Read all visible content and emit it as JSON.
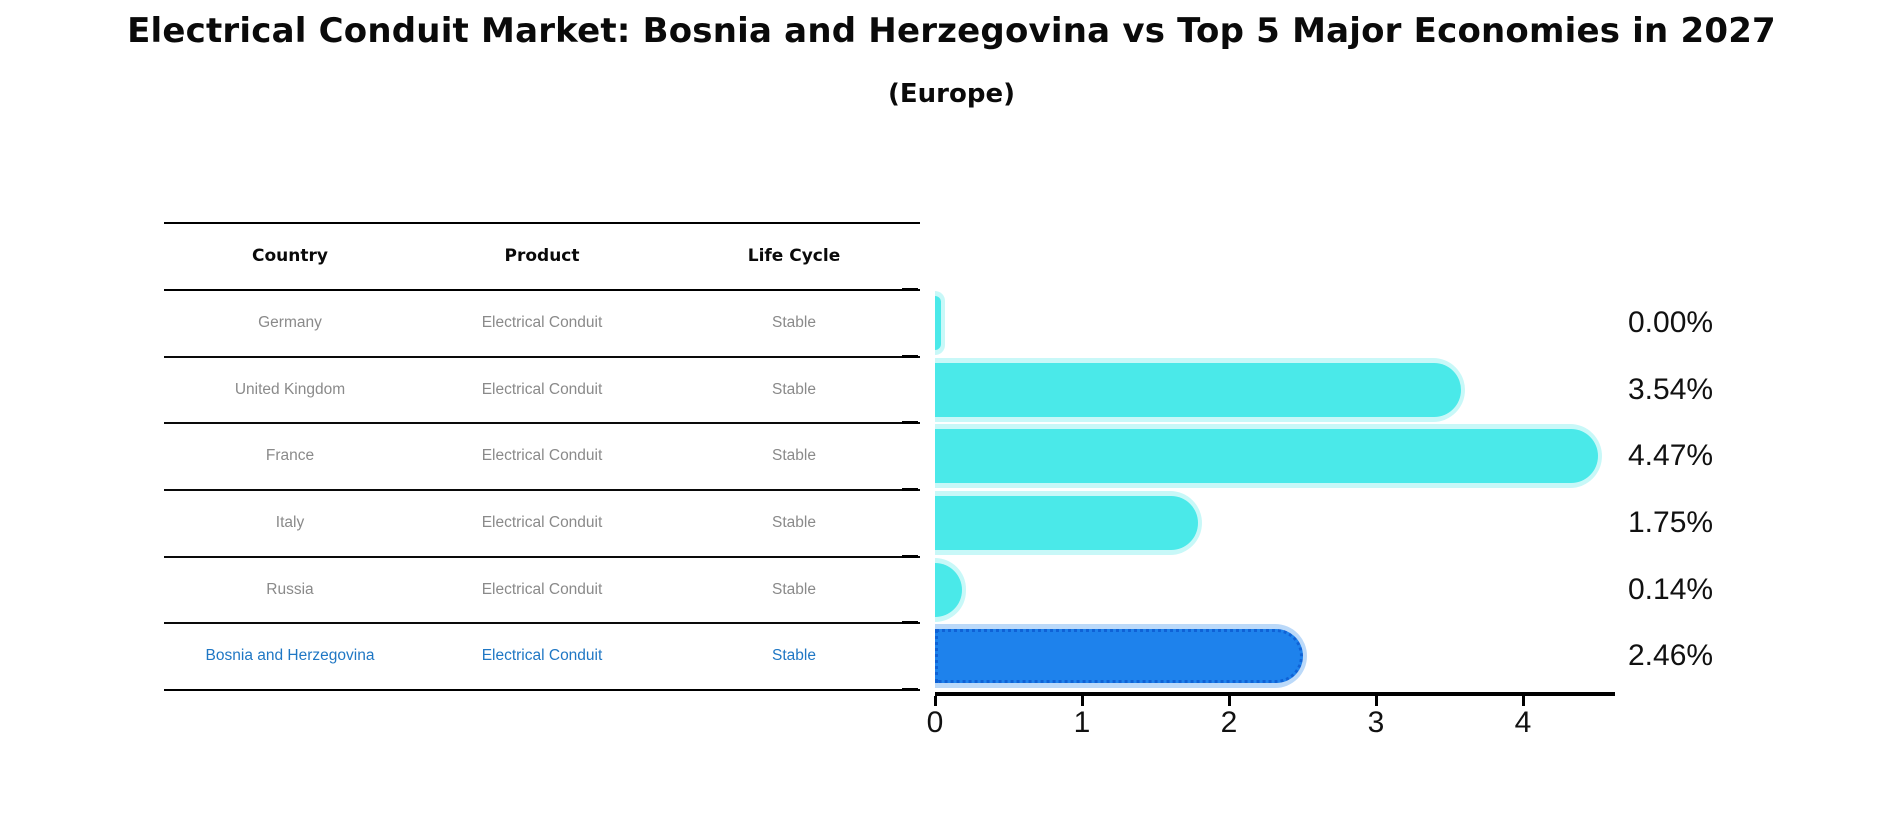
{
  "title": "Electrical Conduit Market: Bosnia and Herzegovina vs Top 5 Major Economies in 2027",
  "subtitle": "(Europe)",
  "table": {
    "headers": [
      "Country",
      "Product",
      "Life Cycle"
    ],
    "rows": [
      {
        "country": "Germany",
        "product": "Electrical Conduit",
        "life_cycle": "Stable",
        "highlighted": false
      },
      {
        "country": "United Kingdom",
        "product": "Electrical Conduit",
        "life_cycle": "Stable",
        "highlighted": false
      },
      {
        "country": "France",
        "product": "Electrical Conduit",
        "life_cycle": "Stable",
        "highlighted": false
      },
      {
        "country": "Italy",
        "product": "Electrical Conduit",
        "life_cycle": "Stable",
        "highlighted": false
      },
      {
        "country": "Russia",
        "product": "Electrical Conduit",
        "life_cycle": "Stable",
        "highlighted": false
      },
      {
        "country": "Bosnia and Herzegovina",
        "product": "Electrical Conduit",
        "life_cycle": "Stable",
        "highlighted": true
      }
    ]
  },
  "chart_data": {
    "type": "bar",
    "orientation": "horizontal",
    "title": "Electrical Conduit Market: Bosnia and Herzegovina vs Top 5 Major Economies in 2027",
    "subtitle": "(Europe)",
    "categories": [
      "Germany",
      "United Kingdom",
      "France",
      "Italy",
      "Russia",
      "Bosnia and Herzegovina"
    ],
    "values": [
      0.0,
      3.54,
      4.47,
      1.75,
      0.14,
      2.46
    ],
    "value_labels": [
      "0.00%",
      "3.54%",
      "4.47%",
      "1.75%",
      "0.14%",
      "2.46%"
    ],
    "xticks": [
      0,
      1,
      2,
      3,
      4
    ],
    "xlim": [
      0,
      4.6
    ],
    "grid": false,
    "legend": false,
    "highlight_index": 5
  },
  "colors": {
    "bar": "#4AE9E9",
    "highlight_bar": "#1E82EC",
    "highlight_bar_border": "#0F62D6",
    "highlight_text": "#1F77C4",
    "row_text": "#8A8A8A",
    "axis": "#000000"
  }
}
